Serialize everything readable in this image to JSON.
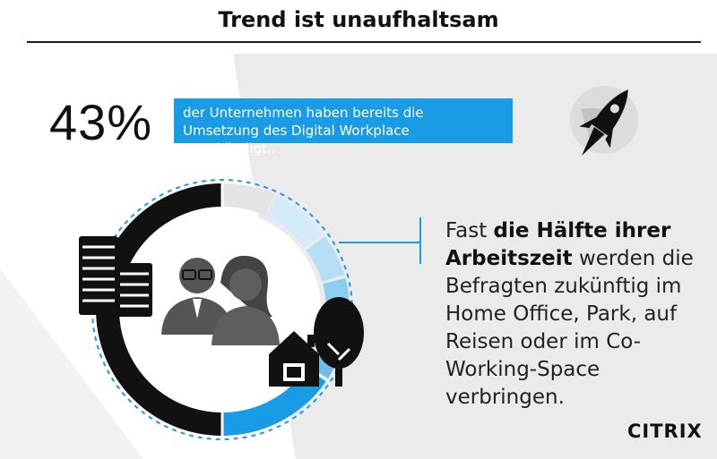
{
  "header": {
    "title": "Trend ist unaufhaltsam"
  },
  "stat": {
    "percent": "43%",
    "text": "der Unternehmen haben bereits die Umsetzung des Digital Workplace angekündigt.."
  },
  "description": {
    "part1": "Fast ",
    "bold1": "die Hälfte ihrer Arbeitszeit",
    "part2": " werden die Befragten zukünftig im Home Office, Park, auf Reisen oder im Co-Working-Space verbringen."
  },
  "logo": {
    "text": "CITRIX"
  },
  "colors": {
    "accent": "#1a9be6",
    "dark": "#111111",
    "light_bg": "#ebebeb"
  },
  "icons": [
    "rocket-icon",
    "office-buildings-icon",
    "people-icon",
    "home-icon",
    "tree-icon"
  ]
}
